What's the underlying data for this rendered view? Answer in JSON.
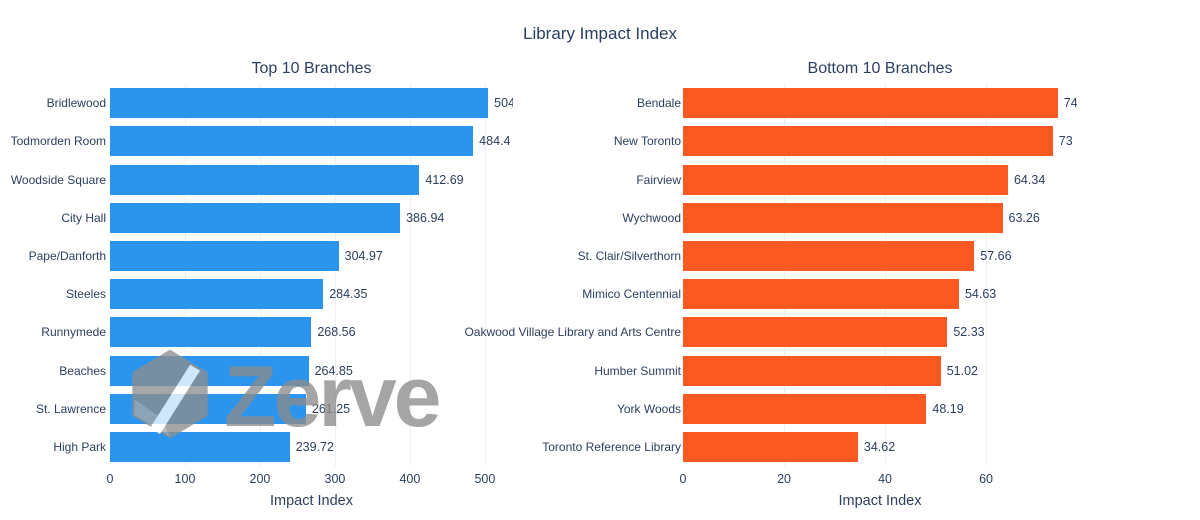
{
  "header": {
    "title": "Library Impact Index"
  },
  "watermark": {
    "text": "Zerve",
    "icon": "zerve-hexagon-logo",
    "color": "#8c8c8c"
  },
  "style": {
    "text_color": "#2a3f5f",
    "grid_color": "#ebf0f8",
    "background": "#ffffff"
  },
  "chart_data": [
    {
      "type": "bar",
      "orientation": "horizontal",
      "title": "Top 10 Branches",
      "xlabel": "Impact Index",
      "xlim": [
        0,
        537.5
      ],
      "xticks": [
        0,
        100,
        200,
        300,
        400,
        500
      ],
      "grid": true,
      "bar_color": "#2b95ee",
      "categories": [
        "Bridlewood",
        "Todmorden Room",
        "Woodside Square",
        "City Hall",
        "Pape/Danforth",
        "Steeles",
        "Runnymede",
        "Beaches",
        "St. Lawrence",
        "High Park"
      ],
      "values": [
        504.4,
        484.4,
        412.69,
        386.94,
        304.97,
        284.35,
        268.56,
        264.85,
        261.25,
        239.72
      ],
      "labels": [
        "504",
        "484.4",
        "412.69",
        "386.94",
        "304.97",
        "284.35",
        "268.56",
        "264.85",
        "261.25",
        "239.72"
      ]
    },
    {
      "type": "bar",
      "orientation": "horizontal",
      "title": "Bottom 10 Branches",
      "xlabel": "Impact Index",
      "xlim": [
        0,
        78
      ],
      "xticks": [
        0,
        20,
        40,
        60
      ],
      "grid": true,
      "bar_color": "#fa5a22",
      "categories": [
        "Bendale",
        "New Toronto",
        "Fairview",
        "Wychwood",
        "St. Clair/Silverthorn",
        "Mimico Centennial",
        "Oakwood Village Library and Arts Centre",
        "Humber Summit",
        "York Woods",
        "Toronto Reference Library"
      ],
      "values": [
        74.2,
        73.2,
        64.34,
        63.26,
        57.66,
        54.63,
        52.33,
        51.02,
        48.19,
        34.62
      ],
      "labels": [
        "74.",
        "73",
        "64.34",
        "63.26",
        "57.66",
        "54.63",
        "52.33",
        "51.02",
        "48.19",
        "34.62"
      ]
    }
  ]
}
